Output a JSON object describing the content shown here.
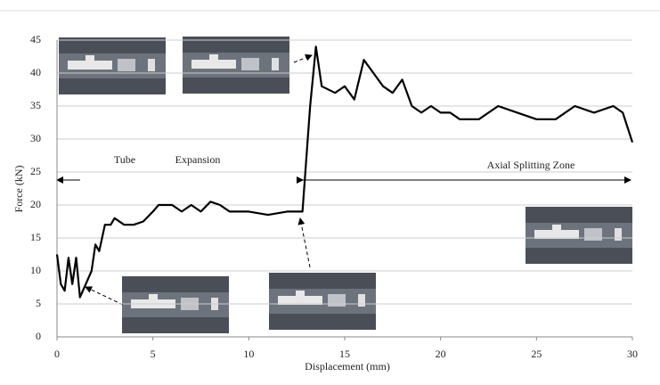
{
  "chart_data": {
    "type": "line",
    "xlabel": "Displacement (mm)",
    "ylabel": "Force (kN)",
    "x": [
      0,
      0.2,
      0.4,
      0.6,
      0.8,
      1.0,
      1.2,
      1.5,
      1.8,
      2.0,
      2.2,
      2.5,
      2.8,
      3.0,
      3.5,
      4,
      4.5,
      5,
      5.3,
      6,
      6.5,
      7,
      7.5,
      8,
      8.5,
      9,
      10,
      11,
      12,
      12.8,
      13.2,
      13.5,
      13.8,
      14.5,
      15,
      15.5,
      16,
      16.5,
      17,
      17.5,
      18,
      18.5,
      19,
      19.5,
      20,
      20.5,
      21,
      22,
      23,
      24,
      25,
      26,
      27,
      28,
      29,
      29.5,
      30
    ],
    "values": [
      12.5,
      8,
      7,
      12,
      8,
      12,
      6,
      8,
      10,
      14,
      13,
      17,
      17,
      18,
      17,
      17,
      17.5,
      19,
      20,
      20,
      19,
      20,
      19,
      20.5,
      20,
      19,
      19,
      18.5,
      19,
      19,
      35,
      44,
      38,
      37,
      38,
      36,
      42,
      40,
      38,
      37,
      39,
      35,
      34,
      35,
      34,
      34,
      33,
      33,
      35,
      34,
      33,
      33,
      35,
      34,
      35,
      34,
      29.5
    ],
    "color": "#000000",
    "xlim": [
      0,
      30
    ],
    "xticks": [
      0,
      5,
      10,
      15,
      20,
      25,
      30
    ],
    "ylim": [
      0,
      45
    ],
    "yticks": [
      0,
      5,
      10,
      15,
      20,
      25,
      30,
      35,
      40,
      45
    ],
    "grid": true,
    "annotations": [
      "Tube",
      "Expansion",
      "Axial Splitting Zone"
    ]
  }
}
